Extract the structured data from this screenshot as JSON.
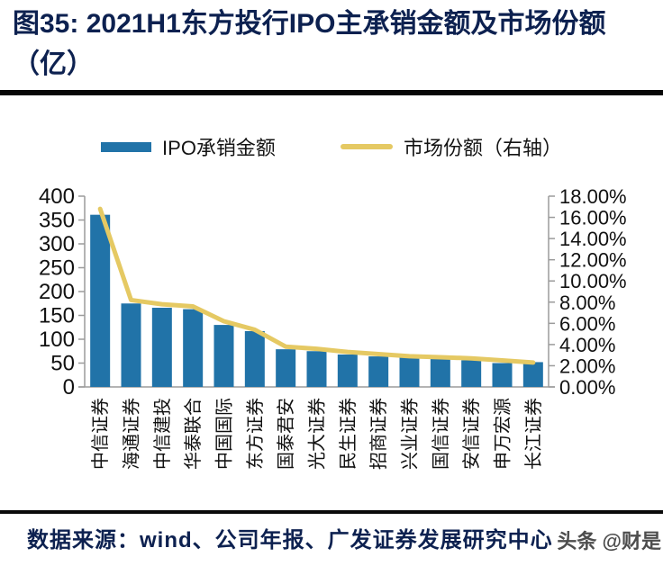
{
  "figure": {
    "title": "图35:  2021H1东方投行IPO主承销金额及市场份额（亿）",
    "source": "数据来源：wind、公司年报、广发证券发展研究中心",
    "watermark": "头条 @财是"
  },
  "colors": {
    "title_navy": "#0d2150",
    "bar_blue": "#2173a8",
    "line_gold": "#e5c963",
    "axis_gray": "#9b9b9b"
  },
  "chart_data": {
    "type": "bar",
    "subtype": "bar+line combo, line on secondary axis",
    "title": "2021H1东方投行IPO主承销金额及市场份额（亿）",
    "categories": [
      "中信证券",
      "海通证券",
      "中信建投",
      "华泰联合",
      "中国国际",
      "东方证券",
      "国泰君安",
      "光大证券",
      "民生证券",
      "招商证券",
      "兴业证券",
      "国信证券",
      "安信证券",
      "申万宏源",
      "长江证券"
    ],
    "series": [
      {
        "name": "IPO承销金额",
        "type": "bar",
        "axis": "left",
        "color": "#2173a8",
        "values": [
          361,
          175,
          166,
          163,
          130,
          117,
          79,
          75,
          68,
          64,
          62,
          59,
          56,
          50,
          52
        ]
      },
      {
        "name": "市场份额（右轴）",
        "type": "line",
        "axis": "right",
        "color": "#e5c963",
        "values": [
          16.8,
          8.2,
          7.8,
          7.6,
          6.2,
          5.4,
          3.8,
          3.6,
          3.3,
          3.1,
          2.9,
          2.8,
          2.7,
          2.5,
          2.3
        ]
      }
    ],
    "left_axis": {
      "min": 0,
      "max": 400,
      "step": 50,
      "ticks": [
        "400",
        "350",
        "300",
        "250",
        "200",
        "150",
        "100",
        "50",
        "0"
      ]
    },
    "right_axis": {
      "min": 0,
      "max": 18,
      "step": 2,
      "ticks": [
        "18.00%",
        "16.00%",
        "14.00%",
        "12.00%",
        "10.00%",
        "8.00%",
        "6.00%",
        "4.00%",
        "2.00%",
        "0.00%"
      ]
    },
    "grid": false,
    "legend_position": "top"
  }
}
